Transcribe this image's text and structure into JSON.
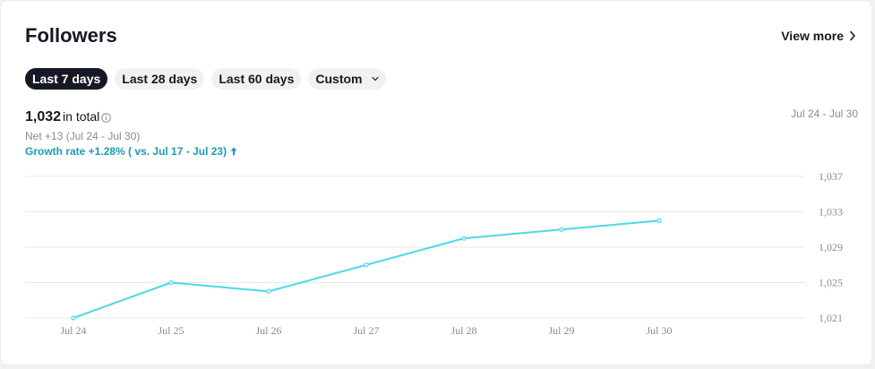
{
  "header": {
    "title": "Followers",
    "view_more_label": "View more"
  },
  "tabs": [
    {
      "label": "Last 7 days",
      "active": true
    },
    {
      "label": "Last 28 days",
      "active": false
    },
    {
      "label": "Last 60 days",
      "active": false
    },
    {
      "label": "Custom",
      "active": false,
      "has_dropdown": true
    }
  ],
  "summary": {
    "total": "1,032",
    "total_label": "in total",
    "net": "Net +13 (Jul 24 - Jul 30)",
    "growth": "Growth rate +1.28% ( vs. Jul 17 - Jul 23)",
    "date_range": "Jul 24 - Jul 30"
  },
  "icons": {
    "view_more": "chevron-right-icon",
    "custom_dropdown": "chevron-down-icon",
    "info": "info-circle-icon",
    "growth": "arrow-up-icon"
  },
  "colors": {
    "line": "#4dd9e8",
    "growth": "#1a9bb5",
    "active_tab_bg": "#161823"
  },
  "chart_data": {
    "type": "line",
    "categories": [
      "Jul 24",
      "Jul 25",
      "Jul 26",
      "Jul 27",
      "Jul 28",
      "Jul 29",
      "Jul 30"
    ],
    "series": [
      {
        "values": [
          1021,
          1025,
          1024,
          1027,
          1030,
          1031,
          1032
        ]
      }
    ],
    "yticks": [
      "1,037",
      "1,033",
      "1,029",
      "1,025",
      "1,021"
    ],
    "ylim": [
      1021,
      1037
    ],
    "grid": true,
    "xlabel": "",
    "ylabel": ""
  }
}
